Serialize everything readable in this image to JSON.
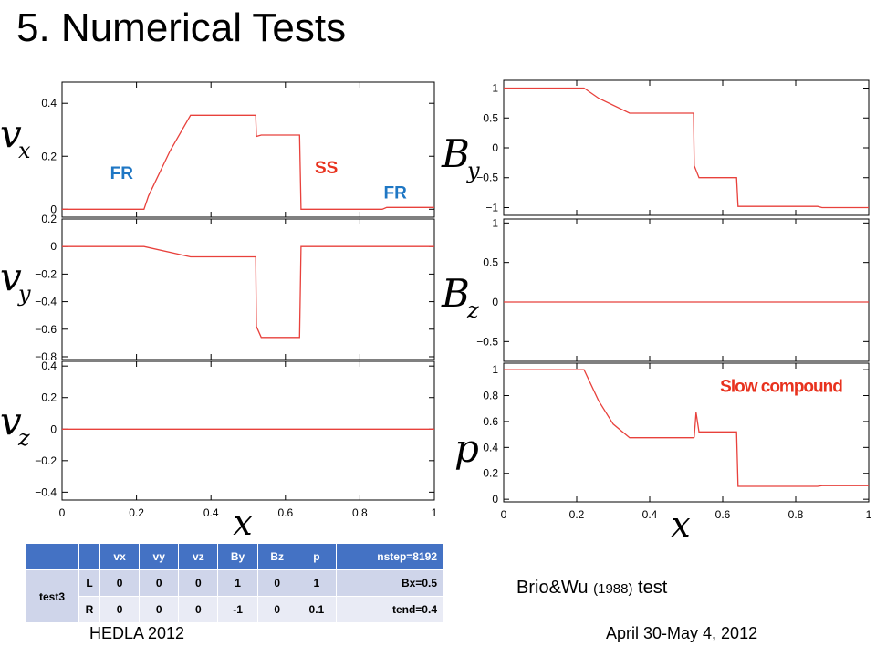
{
  "slide": {
    "title": "5. Numerical Tests",
    "caption_prefix": "Brio&Wu",
    "caption_year": "(1988)",
    "caption_suffix": "test",
    "footer_left": "HEDLA 2012",
    "footer_right": "April 30-May 4, 2012"
  },
  "colors": {
    "curve": "#e8413c",
    "fr_label": "#1f77c4",
    "ss_label": "#e8321e",
    "table_header": "#4472c4"
  },
  "table": {
    "headers": [
      "",
      "",
      "vx",
      "vy",
      "vz",
      "By",
      "Bz",
      "p",
      "nstep=8192"
    ],
    "group": "test3",
    "rows": [
      {
        "side": "L",
        "vx": "0",
        "vy": "0",
        "vz": "0",
        "By": "1",
        "Bz": "0",
        "p": "1",
        "note": "Bx=0.5"
      },
      {
        "side": "R",
        "vx": "0",
        "vy": "0",
        "vz": "0",
        "By": "-1",
        "Bz": "0",
        "p": "0.1",
        "note": "tend=0.4"
      }
    ]
  },
  "chart_data": [
    {
      "id": "vx",
      "type": "line",
      "ylabel": "v_x",
      "xlim": [
        0,
        1
      ],
      "ylim": [
        -0.03,
        0.48
      ],
      "yticks": [
        {
          "v": 0,
          "t": "0"
        },
        {
          "v": 0.2,
          "t": "0.2"
        },
        {
          "v": 0.4,
          "t": "0.4"
        }
      ],
      "x": [
        0,
        0.22,
        0.232,
        0.29,
        0.345,
        0.52,
        0.522,
        0.535,
        0.638,
        0.642,
        0.86,
        0.872,
        1
      ],
      "y": [
        0,
        0,
        0.05,
        0.22,
        0.355,
        0.355,
        0.275,
        0.28,
        0.28,
        0,
        0,
        0.007,
        0.007
      ],
      "annotations": [
        {
          "text": "FR",
          "x": 0.16,
          "y": 0.115,
          "color": "fr"
        },
        {
          "text": "SS",
          "x": 0.71,
          "y": 0.135,
          "color": "ss"
        },
        {
          "text": "FR",
          "x": 0.895,
          "y": 0.04,
          "color": "fr"
        }
      ]
    },
    {
      "id": "vy",
      "type": "line",
      "ylabel": "v_y",
      "xlim": [
        0,
        1
      ],
      "ylim": [
        -0.82,
        0.2
      ],
      "yticks": [
        {
          "v": 0.2,
          "t": "0.2"
        },
        {
          "v": 0,
          "t": "0"
        },
        {
          "v": -0.2,
          "t": "−0.2"
        },
        {
          "v": -0.4,
          "t": "−0.4"
        },
        {
          "v": -0.6,
          "t": "−0.6"
        },
        {
          "v": -0.8,
          "t": "−0.8"
        }
      ],
      "x": [
        0,
        0.22,
        0.345,
        0.52,
        0.522,
        0.535,
        0.638,
        0.642,
        1
      ],
      "y": [
        0,
        0,
        -0.075,
        -0.075,
        -0.58,
        -0.66,
        -0.66,
        0,
        0
      ],
      "annotations": []
    },
    {
      "id": "vz",
      "type": "line",
      "ylabel": "v_z",
      "xlim": [
        0,
        1
      ],
      "ylim": [
        -0.45,
        0.43
      ],
      "yticks": [
        {
          "v": 0.4,
          "t": "0.4"
        },
        {
          "v": 0.2,
          "t": "0.2"
        },
        {
          "v": 0,
          "t": "0"
        },
        {
          "v": -0.2,
          "t": "−0.2"
        },
        {
          "v": -0.4,
          "t": "−0.4"
        }
      ],
      "xticks": [
        "0",
        "0.2",
        "0.4",
        "0.6",
        "0.8",
        "1"
      ],
      "xlabel": "x",
      "x": [
        0,
        1
      ],
      "y": [
        0,
        0
      ],
      "annotations": []
    },
    {
      "id": "By",
      "type": "line",
      "ylabel": "B_y",
      "xlim": [
        0,
        1
      ],
      "ylim": [
        -1.13,
        1.13
      ],
      "yticks": [
        {
          "v": 1,
          "t": "1"
        },
        {
          "v": 0.5,
          "t": "0.5"
        },
        {
          "v": 0,
          "t": "0"
        },
        {
          "v": -0.5,
          "t": "−0.5"
        },
        {
          "v": -1,
          "t": "−1"
        }
      ],
      "x": [
        0,
        0.22,
        0.26,
        0.345,
        0.52,
        0.522,
        0.535,
        0.638,
        0.642,
        0.86,
        0.872,
        1
      ],
      "y": [
        1,
        1,
        0.83,
        0.58,
        0.58,
        -0.3,
        -0.5,
        -0.5,
        -0.98,
        -0.98,
        -1,
        -1
      ],
      "annotations": []
    },
    {
      "id": "Bz",
      "type": "line",
      "ylabel": "B_z",
      "xlim": [
        0,
        1
      ],
      "ylim": [
        -0.75,
        1.05
      ],
      "yticks": [
        {
          "v": 1,
          "t": "1"
        },
        {
          "v": 0.5,
          "t": "0.5"
        },
        {
          "v": 0,
          "t": "0"
        },
        {
          "v": -0.5,
          "t": "−0.5"
        }
      ],
      "x": [
        0,
        1
      ],
      "y": [
        0,
        0
      ],
      "annotations": []
    },
    {
      "id": "p",
      "type": "line",
      "ylabel": "p",
      "xlim": [
        0,
        1
      ],
      "ylim": [
        -0.02,
        1.05
      ],
      "yticks": [
        {
          "v": 1,
          "t": "1"
        },
        {
          "v": 0.8,
          "t": "0.8"
        },
        {
          "v": 0.6,
          "t": "0.6"
        },
        {
          "v": 0.4,
          "t": "0.4"
        },
        {
          "v": 0.2,
          "t": "0.2"
        },
        {
          "v": 0,
          "t": "0"
        }
      ],
      "xticks": [
        "0",
        "0.2",
        "0.4",
        "0.6",
        "0.8",
        "1"
      ],
      "xlabel": "x",
      "x": [
        0,
        0.22,
        0.26,
        0.3,
        0.345,
        0.52,
        0.522,
        0.527,
        0.535,
        0.638,
        0.642,
        0.86,
        0.872,
        1
      ],
      "y": [
        1,
        1,
        0.76,
        0.58,
        0.475,
        0.475,
        0.48,
        0.67,
        0.52,
        0.52,
        0.1,
        0.1,
        0.105,
        0.105
      ],
      "annotations": [
        {
          "text": "Slow compound",
          "x": 0.76,
          "y": 0.83,
          "color": "ss"
        }
      ]
    }
  ]
}
